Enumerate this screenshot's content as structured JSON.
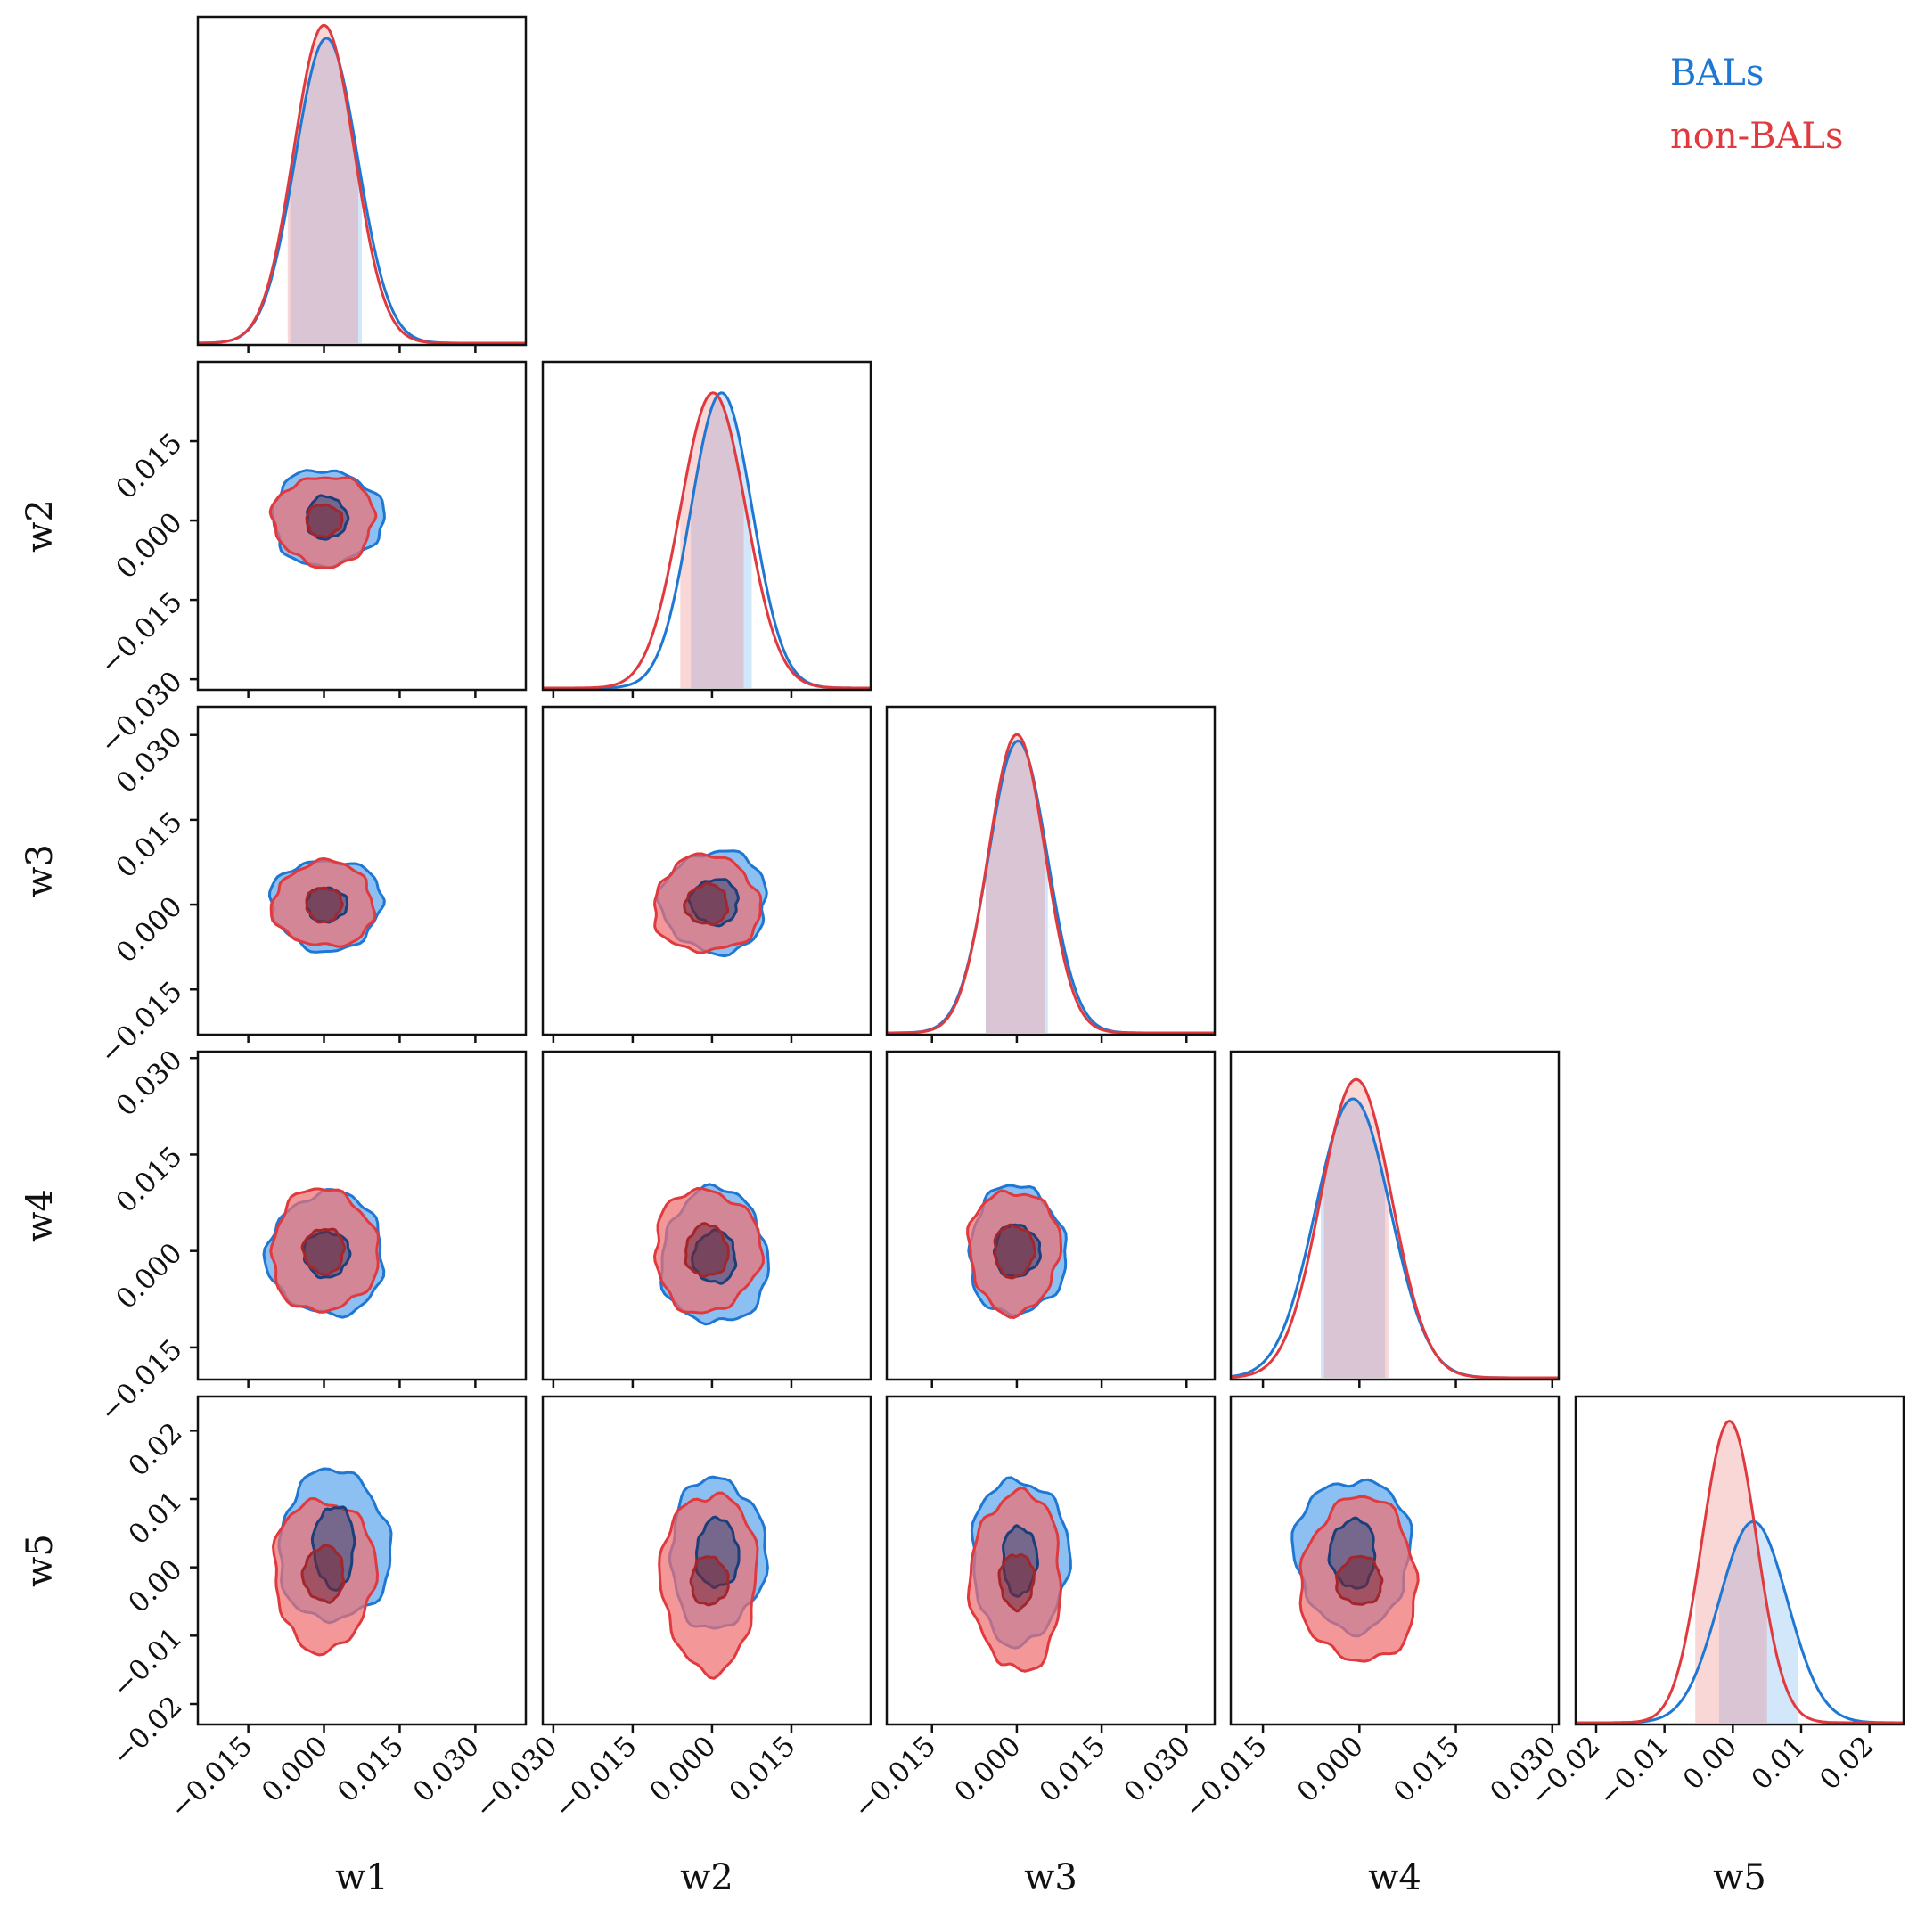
{
  "chart_data": {
    "type": "corner",
    "parameters": [
      "w1",
      "w2",
      "w3",
      "w4",
      "w5"
    ],
    "series": [
      {
        "name": "BALs",
        "color": "#1f77d4",
        "fill": "#5fa8ee"
      },
      {
        "name": "non-BALs",
        "color": "#e03a3e",
        "fill": "#ee6f71"
      }
    ],
    "legend_position": "top-right",
    "axes": {
      "w1": {
        "range": [
          -0.025,
          0.04
        ],
        "ticks": [
          -0.015,
          0.0,
          0.015,
          0.03
        ],
        "tick_labels": [
          "−0.015",
          "0.000",
          "0.015",
          "0.030"
        ]
      },
      "w2": {
        "range": [
          -0.032,
          0.03
        ],
        "ticks": [
          -0.03,
          -0.015,
          0.0,
          0.015
        ],
        "tick_labels": [
          "−0.030",
          "−0.015",
          "0.000",
          "0.015"
        ]
      },
      "w3": {
        "range": [
          -0.023,
          0.035
        ],
        "ticks": [
          -0.015,
          0.0,
          0.015,
          0.03
        ],
        "tick_labels": [
          "−0.015",
          "0.000",
          "0.015",
          "0.030"
        ]
      },
      "w4": {
        "range": [
          -0.02,
          0.031
        ],
        "ticks": [
          -0.015,
          0.0,
          0.015,
          0.03
        ],
        "tick_labels": [
          "−0.015",
          "0.000",
          "0.015",
          "0.030"
        ]
      },
      "w5": {
        "range": [
          -0.023,
          0.025
        ],
        "ticks": [
          -0.02,
          -0.01,
          0.0,
          0.01,
          0.02
        ],
        "tick_labels": [
          "−0.02",
          "−0.01",
          "0.00",
          "0.01",
          "0.02"
        ]
      }
    },
    "marginals": [
      {
        "param": "w1",
        "series": [
          {
            "name": "BALs",
            "mean": 0.0005,
            "std": 0.0062,
            "peak": 0.94,
            "interval": [
              -0.0067,
              0.0075
            ]
          },
          {
            "name": "non-BALs",
            "mean": 0.0,
            "std": 0.006,
            "peak": 0.98,
            "interval": [
              -0.0072,
              0.0068
            ]
          }
        ]
      },
      {
        "param": "w2",
        "series": [
          {
            "name": "BALs",
            "mean": 0.0018,
            "std": 0.0058,
            "peak": 0.91,
            "interval": [
              -0.004,
              0.0075
            ]
          },
          {
            "name": "non-BALs",
            "mean": 0.0002,
            "std": 0.0062,
            "peak": 0.91,
            "interval": [
              -0.006,
              0.006
            ]
          }
        ]
      },
      {
        "param": "w3",
        "series": [
          {
            "name": "BALs",
            "mean": 0.0002,
            "std": 0.0052,
            "peak": 0.9,
            "interval": [
              -0.0055,
              0.0055
            ]
          },
          {
            "name": "non-BALs",
            "mean": 0.0,
            "std": 0.005,
            "peak": 0.92,
            "interval": [
              -0.0055,
              0.005
            ]
          }
        ]
      },
      {
        "param": "w4",
        "series": [
          {
            "name": "BALs",
            "mean": -0.001,
            "std": 0.0058,
            "peak": 0.86,
            "interval": [
              -0.006,
              0.004
            ]
          },
          {
            "name": "non-BALs",
            "mean": -0.0005,
            "std": 0.0055,
            "peak": 0.92,
            "interval": [
              -0.0055,
              0.0045
            ]
          }
        ]
      },
      {
        "param": "w5",
        "series": [
          {
            "name": "BALs",
            "mean": 0.003,
            "std": 0.005,
            "peak": 0.62,
            "interval": [
              -0.002,
              0.0095
            ]
          },
          {
            "name": "non-BALs",
            "mean": -0.0005,
            "std": 0.004,
            "peak": 0.93,
            "interval": [
              -0.0055,
              0.005
            ]
          }
        ]
      }
    ],
    "contours": [
      {
        "x": "w1",
        "y": "w2",
        "series": [
          {
            "name": "BALs",
            "cx": 0.0005,
            "cy": 0.0005,
            "sx": 0.011,
            "sy": 0.009,
            "ix": 0.004,
            "iy": 0.004
          },
          {
            "name": "non-BALs",
            "cx": 0.0,
            "cy": 0.0,
            "sx": 0.01,
            "sy": 0.0085,
            "ix": 0.0035,
            "iy": 0.003
          }
        ]
      },
      {
        "x": "w1",
        "y": "w3",
        "series": [
          {
            "name": "BALs",
            "cx": 0.0005,
            "cy": 0.0,
            "sx": 0.011,
            "sy": 0.008,
            "ix": 0.004,
            "iy": 0.003
          },
          {
            "name": "non-BALs",
            "cx": 0.0,
            "cy": 0.0,
            "sx": 0.01,
            "sy": 0.0075,
            "ix": 0.0035,
            "iy": 0.003
          }
        ]
      },
      {
        "x": "w1",
        "y": "w4",
        "series": [
          {
            "name": "BALs",
            "cx": 0.0005,
            "cy": -0.0005,
            "sx": 0.0115,
            "sy": 0.0095,
            "ix": 0.0045,
            "iy": 0.0035
          },
          {
            "name": "non-BALs",
            "cx": 0.0,
            "cy": 0.0,
            "sx": 0.0105,
            "sy": 0.0095,
            "ix": 0.004,
            "iy": 0.0035
          }
        ]
      },
      {
        "x": "w1",
        "y": "w5",
        "series": [
          {
            "name": "BALs",
            "cx": 0.002,
            "cy": 0.003,
            "sx": 0.011,
            "sy": 0.011,
            "ix": 0.004,
            "iy": 0.006
          },
          {
            "name": "non-BALs",
            "cx": 0.0,
            "cy": -0.001,
            "sx": 0.01,
            "sy": 0.011,
            "ix": 0.004,
            "iy": 0.004
          }
        ]
      },
      {
        "x": "w2",
        "y": "w3",
        "series": [
          {
            "name": "BALs",
            "cx": 0.0005,
            "cy": 0.0005,
            "sx": 0.01,
            "sy": 0.009,
            "ix": 0.0045,
            "iy": 0.004
          },
          {
            "name": "non-BALs",
            "cx": -0.001,
            "cy": 0.0,
            "sx": 0.01,
            "sy": 0.0085,
            "ix": 0.004,
            "iy": 0.0035
          }
        ]
      },
      {
        "x": "w2",
        "y": "w4",
        "series": [
          {
            "name": "BALs",
            "cx": 0.0005,
            "cy": -0.001,
            "sx": 0.01,
            "sy": 0.0105,
            "ix": 0.004,
            "iy": 0.004
          },
          {
            "name": "non-BALs",
            "cx": -0.001,
            "cy": 0.0,
            "sx": 0.01,
            "sy": 0.0095,
            "ix": 0.004,
            "iy": 0.004
          }
        ]
      },
      {
        "x": "w2",
        "y": "w5",
        "series": [
          {
            "name": "BALs",
            "cx": 0.001,
            "cy": 0.002,
            "sx": 0.009,
            "sy": 0.011,
            "ix": 0.004,
            "iy": 0.005
          },
          {
            "name": "non-BALs",
            "cx": -0.0005,
            "cy": -0.002,
            "sx": 0.009,
            "sy": 0.013,
            "ix": 0.0035,
            "iy": 0.0035
          }
        ]
      },
      {
        "x": "w3",
        "y": "w4",
        "series": [
          {
            "name": "BALs",
            "cx": 0.0,
            "cy": 0.0,
            "sx": 0.0085,
            "sy": 0.01,
            "ix": 0.004,
            "iy": 0.004
          },
          {
            "name": "non-BALs",
            "cx": -0.0005,
            "cy": 0.0,
            "sx": 0.008,
            "sy": 0.0095,
            "ix": 0.0035,
            "iy": 0.004
          }
        ]
      },
      {
        "x": "w3",
        "y": "w5",
        "series": [
          {
            "name": "BALs",
            "cx": 0.0005,
            "cy": 0.001,
            "sx": 0.0085,
            "sy": 0.012,
            "ix": 0.003,
            "iy": 0.005
          },
          {
            "name": "non-BALs",
            "cx": 0.0,
            "cy": -0.002,
            "sx": 0.008,
            "sy": 0.013,
            "ix": 0.003,
            "iy": 0.004
          }
        ]
      },
      {
        "x": "w4",
        "y": "w5",
        "series": [
          {
            "name": "BALs",
            "cx": -0.001,
            "cy": 0.002,
            "sx": 0.009,
            "sy": 0.011,
            "ix": 0.0035,
            "iy": 0.005
          },
          {
            "name": "non-BALs",
            "cx": 0.0,
            "cy": -0.002,
            "sx": 0.009,
            "sy": 0.012,
            "ix": 0.0035,
            "iy": 0.0035
          }
        ]
      }
    ]
  }
}
